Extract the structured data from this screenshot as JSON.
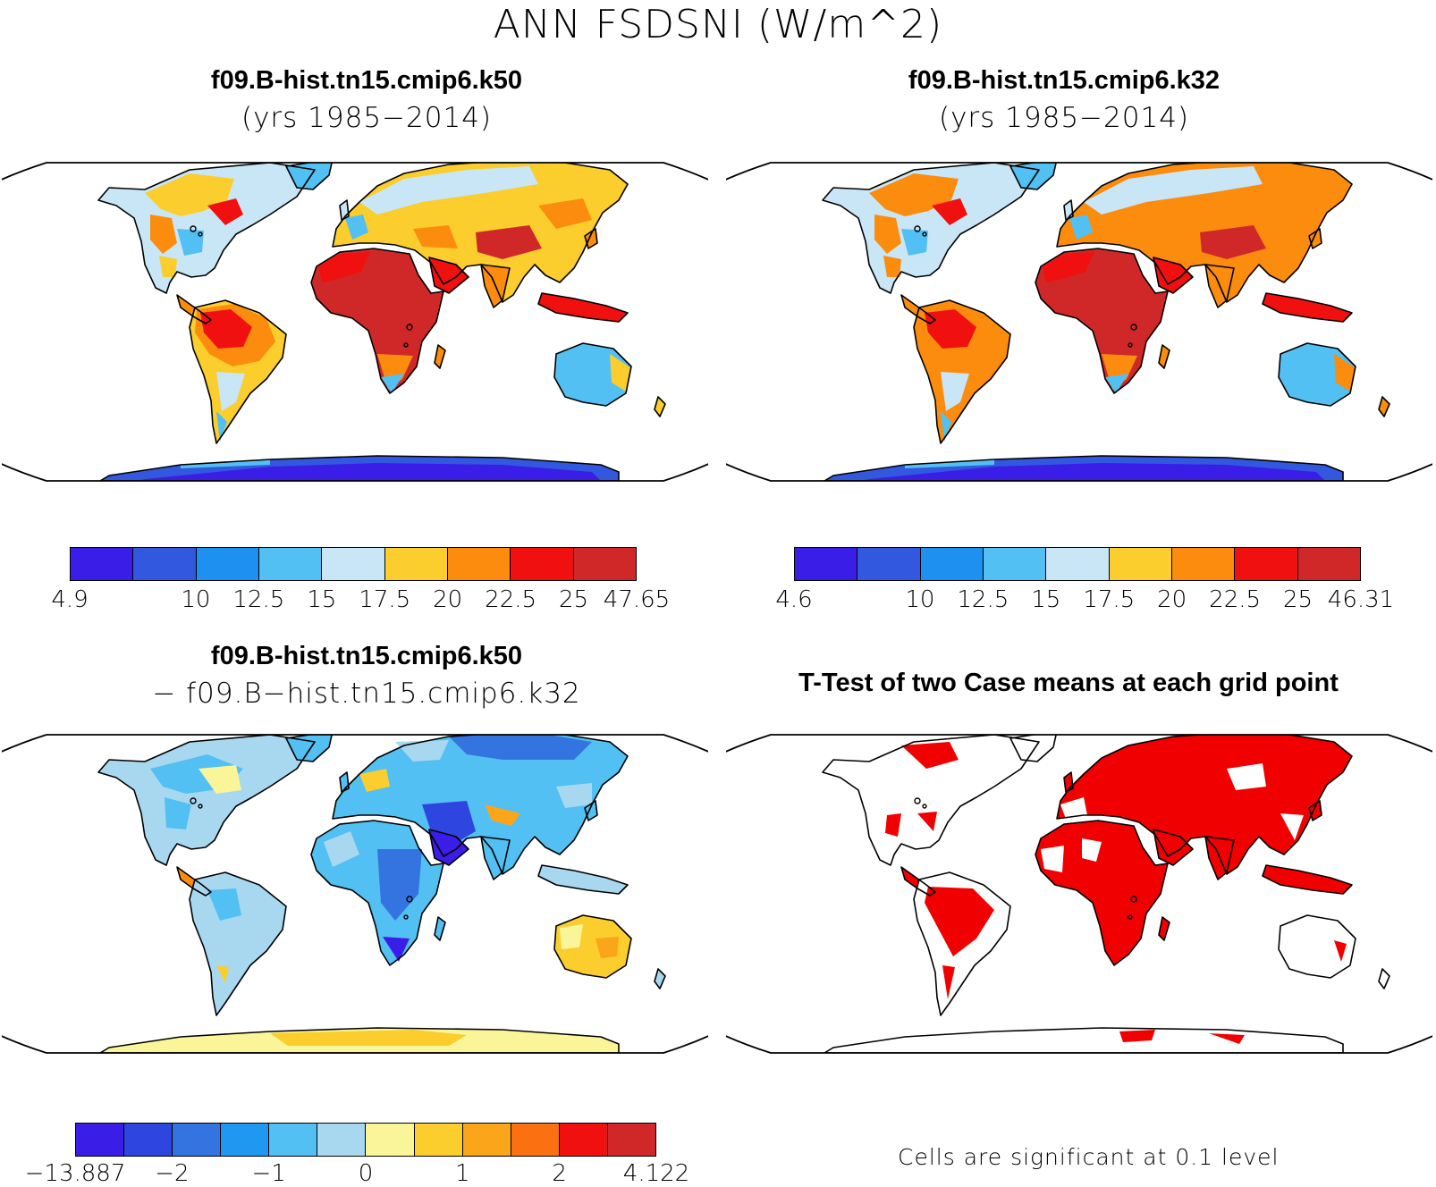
{
  "title": "ANN FSDSNI (W/m^2)",
  "panels": {
    "top_left": {
      "title": "f09.B-hist.tn15.cmip6.k50",
      "subtitle": "(yrs 1985−2014)",
      "colorbar": {
        "colors": [
          "#3a1ee8",
          "#3358e0",
          "#1e90f0",
          "#52c0f2",
          "#c8e6f6",
          "#fbcd2d",
          "#fb8c0d",
          "#f01010",
          "#d02828"
        ],
        "labels": [
          "4.9",
          "10",
          "12.5",
          "15",
          "17.5",
          "20",
          "22.5",
          "25",
          "47.65"
        ]
      }
    },
    "top_right": {
      "title": "f09.B-hist.tn15.cmip6.k32",
      "subtitle": "(yrs 1985−2014)",
      "colorbar": {
        "colors": [
          "#3a1ee8",
          "#3358e0",
          "#1e90f0",
          "#52c0f2",
          "#c8e6f6",
          "#fbcd2d",
          "#fb8c0d",
          "#f01010",
          "#d02828"
        ],
        "labels": [
          "4.6",
          "10",
          "12.5",
          "15",
          "17.5",
          "20",
          "22.5",
          "25",
          "46.31"
        ]
      }
    },
    "bottom_left": {
      "title": "f09.B-hist.tn15.cmip6.k50",
      "subtitle": "− f09.B−hist.tn15.cmip6.k32",
      "colorbar": {
        "colors": [
          "#3a1ee8",
          "#2f45e0",
          "#3474e0",
          "#1e98f0",
          "#52c0f2",
          "#a8d8f0",
          "#fbf59a",
          "#fbcd2d",
          "#fba51a",
          "#fb7010",
          "#f01010",
          "#d02828"
        ],
        "labels": [
          "−13.887",
          "−2",
          "−1",
          "0",
          "1",
          "2",
          "4.122"
        ]
      }
    },
    "bottom_right": {
      "title": "T-Test of two Case means at each grid point",
      "note": "Cells are significant at 0.1 level",
      "significant_color": "#f00000"
    }
  }
}
